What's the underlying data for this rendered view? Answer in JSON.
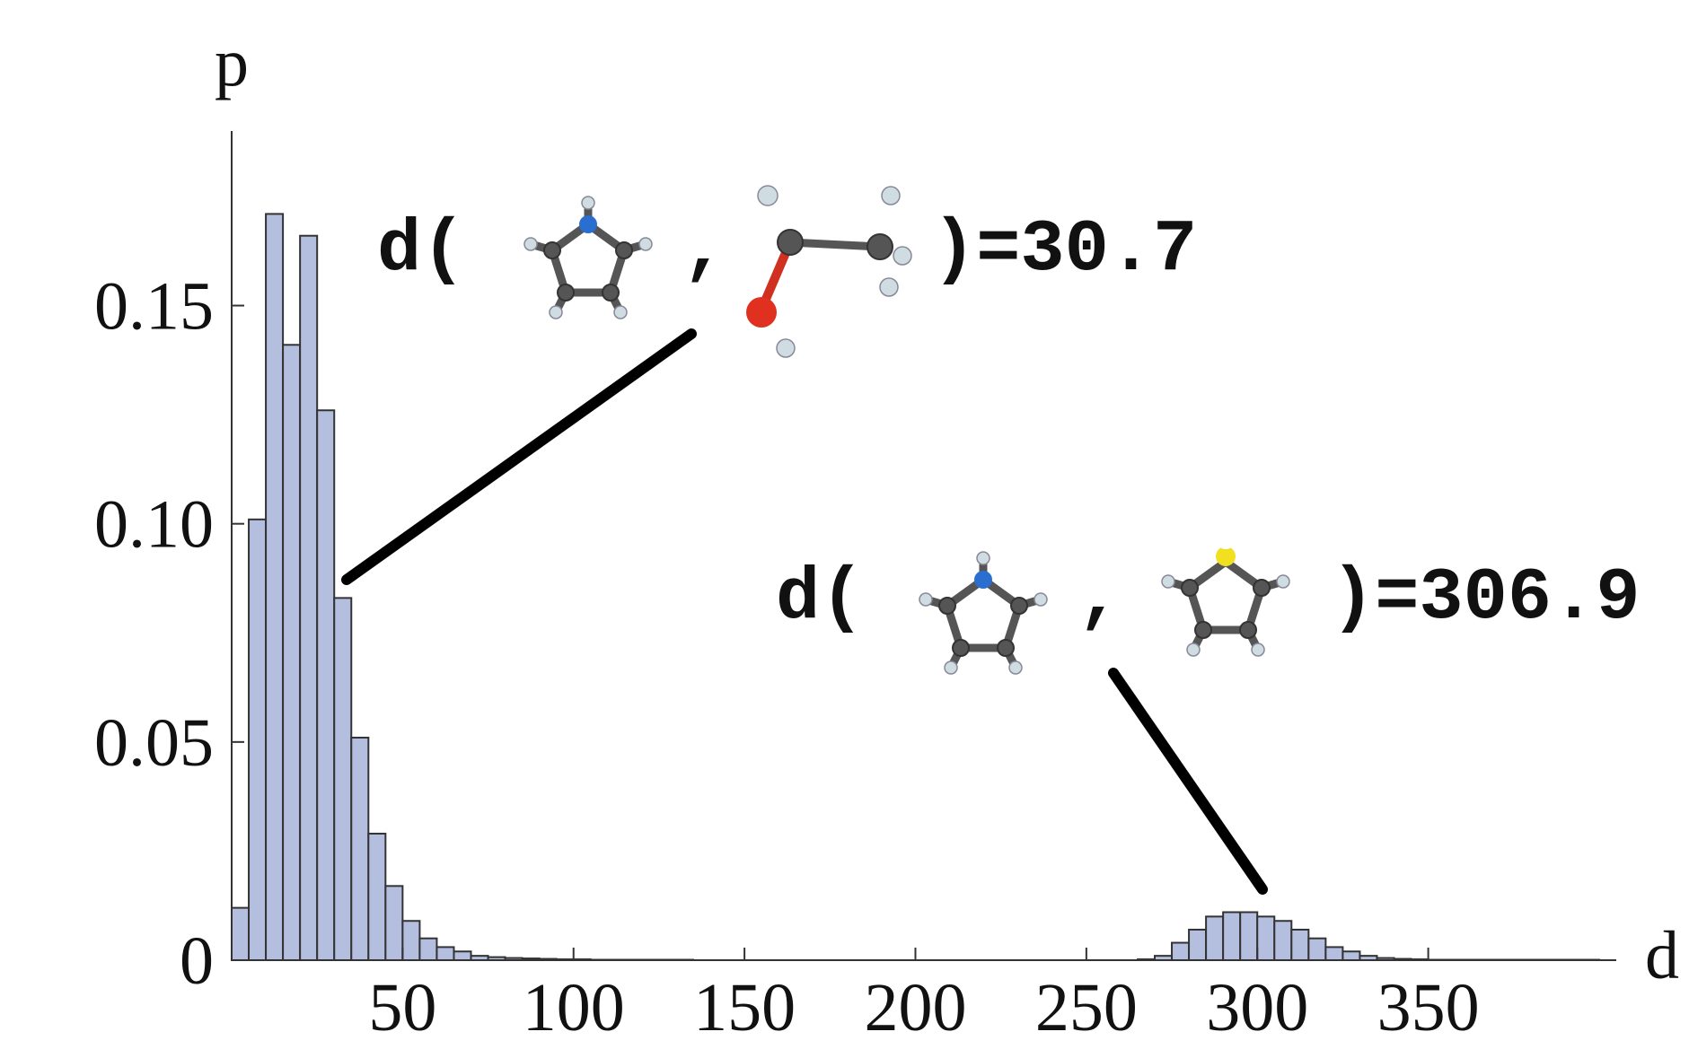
{
  "chart_data": {
    "type": "histogram",
    "xlabel": "d",
    "ylabel": "p",
    "bins": [
      0,
      5,
      10,
      15,
      20,
      25,
      30,
      35,
      40,
      45,
      50,
      55,
      60,
      65,
      70,
      75,
      80,
      85,
      90,
      95,
      100,
      105,
      110,
      115,
      120,
      125,
      130,
      135,
      140,
      145,
      150,
      155,
      160,
      165,
      170,
      175,
      180,
      185,
      190,
      195,
      200,
      205,
      210,
      215,
      220,
      225,
      230,
      235,
      240,
      245,
      250,
      255,
      260,
      265,
      270,
      275,
      280,
      285,
      290,
      295,
      300,
      305,
      310,
      315,
      320,
      325,
      330,
      335,
      340,
      345,
      350,
      355,
      360,
      365,
      370,
      375,
      380,
      385,
      390,
      395,
      400
    ],
    "counts": [
      0.012,
      0.101,
      0.171,
      0.141,
      0.166,
      0.126,
      0.083,
      0.051,
      0.029,
      0.017,
      0.009,
      0.005,
      0.003,
      0.002,
      0.001,
      0.0007,
      0.0005,
      0.0004,
      0.0003,
      0.0002,
      0.0002,
      0.0001,
      0.0001,
      0.0001,
      0.0001,
      0.0001,
      0.0001,
      0,
      0,
      0,
      0,
      0,
      0,
      0,
      0,
      0,
      0,
      0,
      0,
      0,
      0,
      0,
      0,
      0,
      0,
      0,
      0,
      0,
      0,
      0,
      0,
      0,
      0,
      0.0002,
      0.001,
      0.004,
      0.007,
      0.01,
      0.011,
      0.011,
      0.01,
      0.009,
      0.007,
      0.005,
      0.003,
      0.002,
      0.001,
      0.0005,
      0.0003,
      0.0002,
      0.0001,
      0.0001,
      0.0001,
      0.0001,
      0.0001,
      0.0001,
      0.0001,
      0.0001,
      0.0001,
      0.0001
    ],
    "color": "#b4bfe0",
    "xlim": [
      0,
      405
    ],
    "ylim": [
      0,
      0.19
    ],
    "xticks": [
      50,
      100,
      150,
      200,
      250,
      300,
      350
    ],
    "yticks": [
      0,
      0.05,
      {
        "value": 0.1,
        "label": "0.10"
      },
      0.15
    ],
    "annotations": [
      {
        "prefix": "d(",
        "separator": ",",
        "suffix": ")=30.7"
      },
      {
        "prefix": "d(",
        "separator": ",",
        "suffix": ")=306.9"
      }
    ]
  }
}
